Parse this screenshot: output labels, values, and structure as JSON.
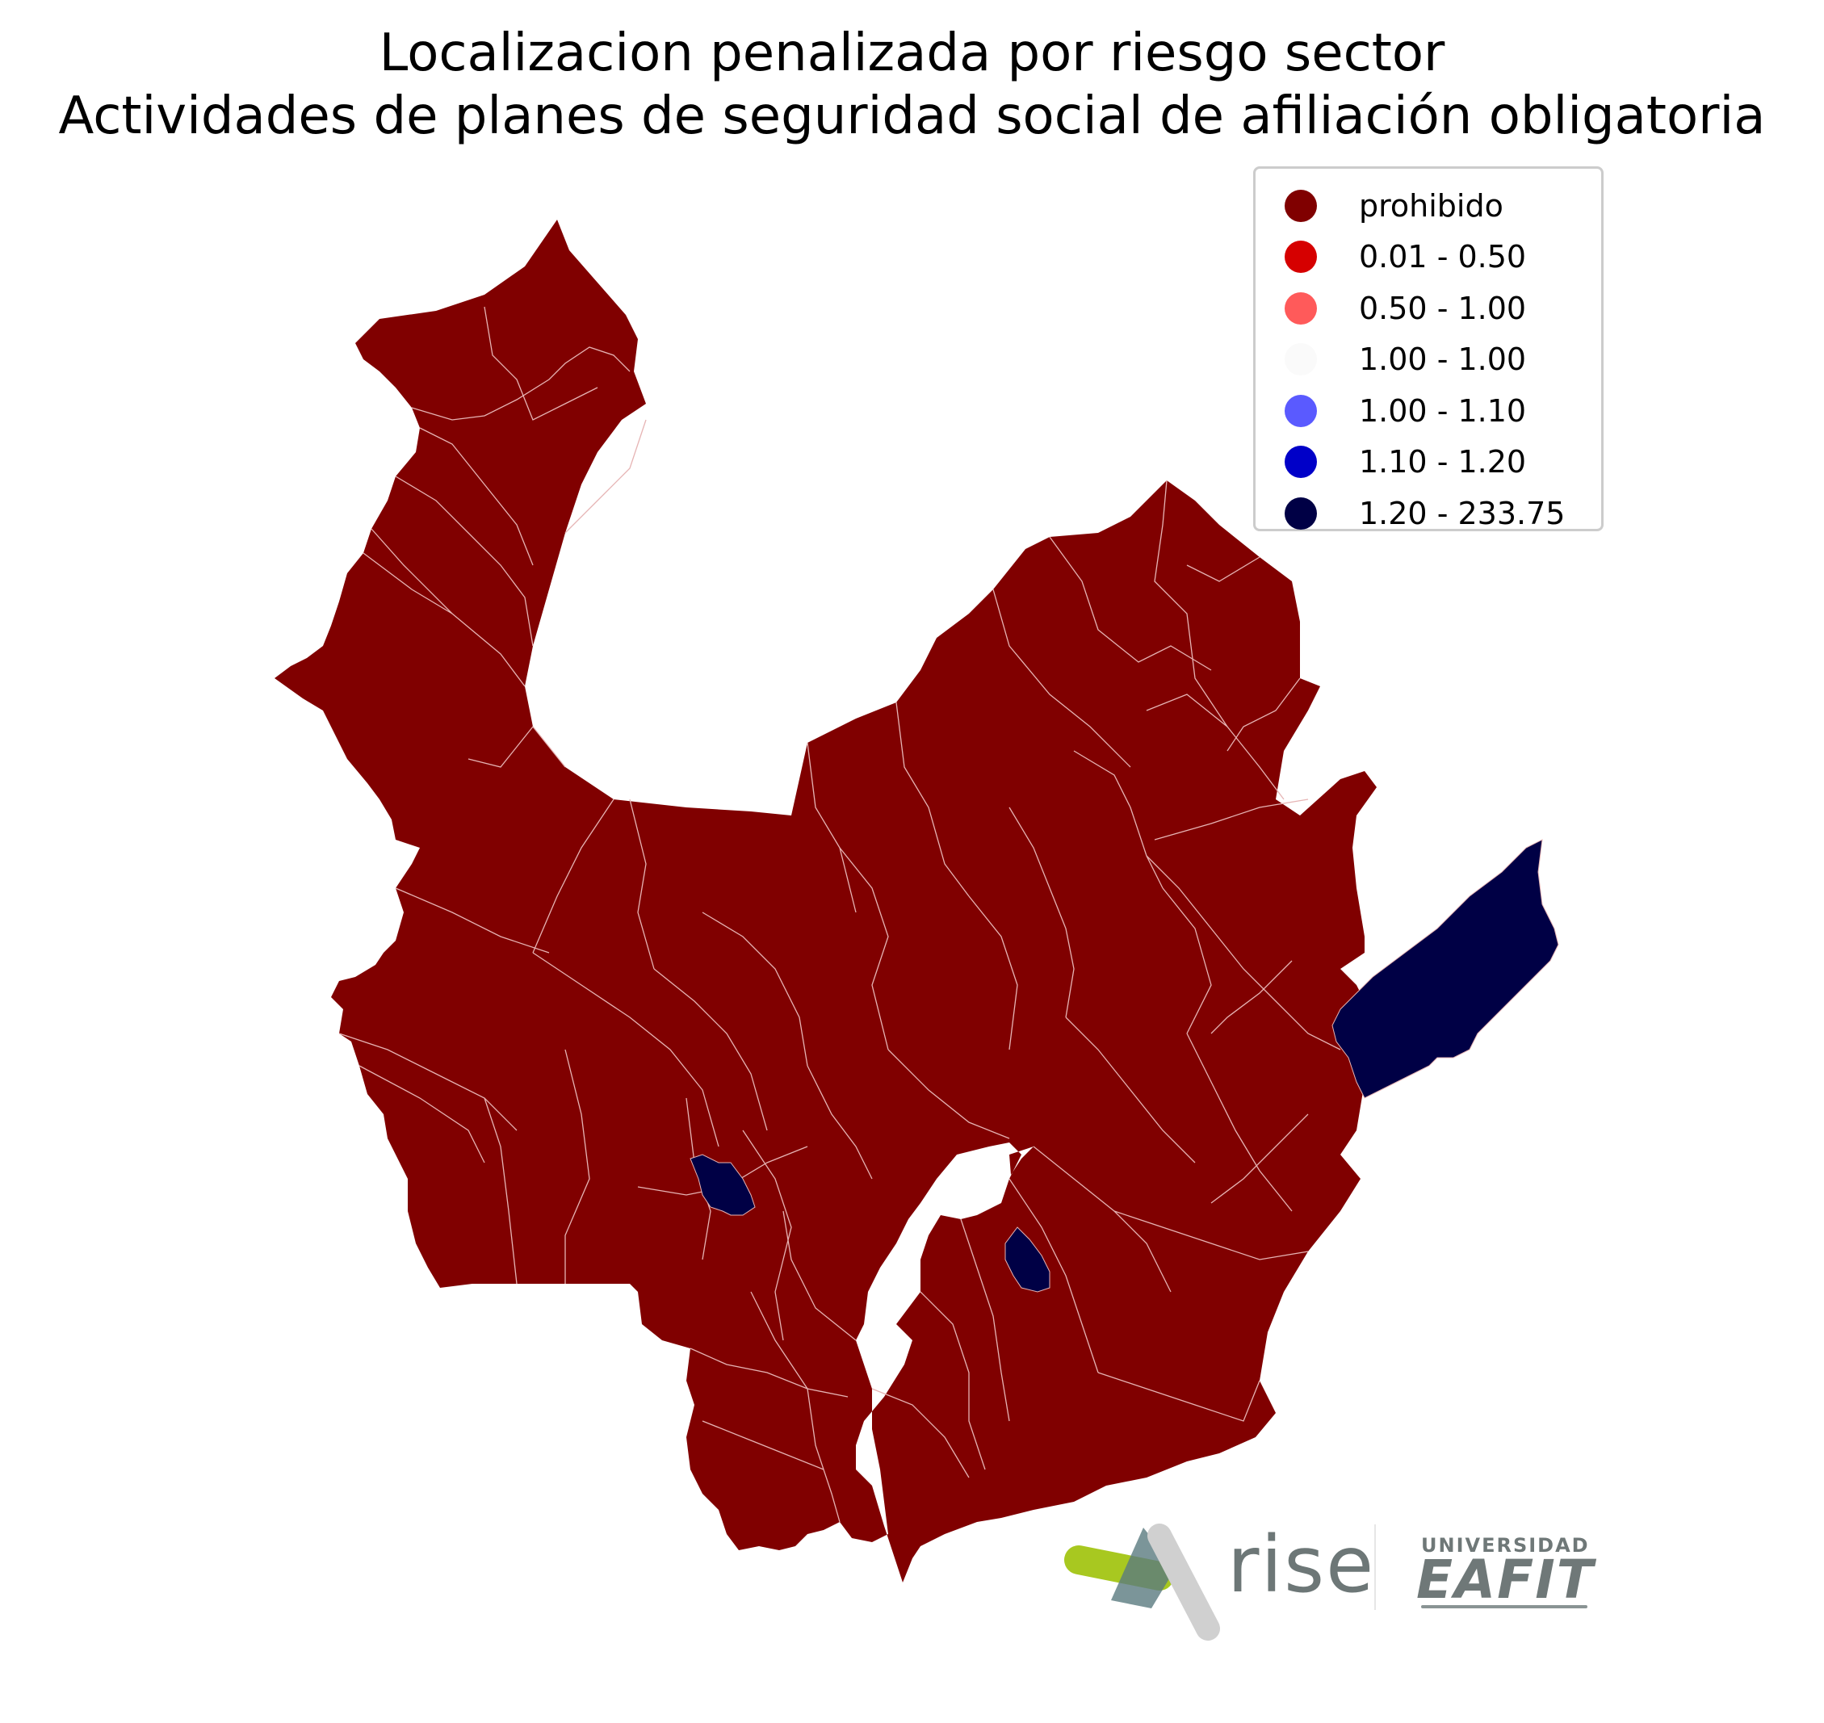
{
  "title": {
    "line1": "Localizacion penalizada por riesgo sector",
    "line2": "Actividades de planes de seguridad social de afiliación obligatoria"
  },
  "legend": {
    "items": [
      {
        "label": "prohibido",
        "color": "#800000"
      },
      {
        "label": "0.01 - 0.50",
        "color": "#d60000"
      },
      {
        "label": "0.50 - 1.00",
        "color": "#ff5a5a"
      },
      {
        "label": "1.00 - 1.00",
        "color": "#fafafa"
      },
      {
        "label": "1.00 - 1.10",
        "color": "#5a5aff"
      },
      {
        "label": "1.10 - 1.20",
        "color": "#0000c8"
      },
      {
        "label": "1.20 - 233.75",
        "color": "#000045"
      }
    ]
  },
  "map": {
    "region_fill": "#800000",
    "border_color": "#e6b4b4",
    "highlight_fill": "#000045",
    "highlighted_class": "1.20 - 233.75"
  },
  "logos": {
    "rise": "rise",
    "university_top": "UNIVERSIDAD",
    "university_main": "EAFIT"
  }
}
